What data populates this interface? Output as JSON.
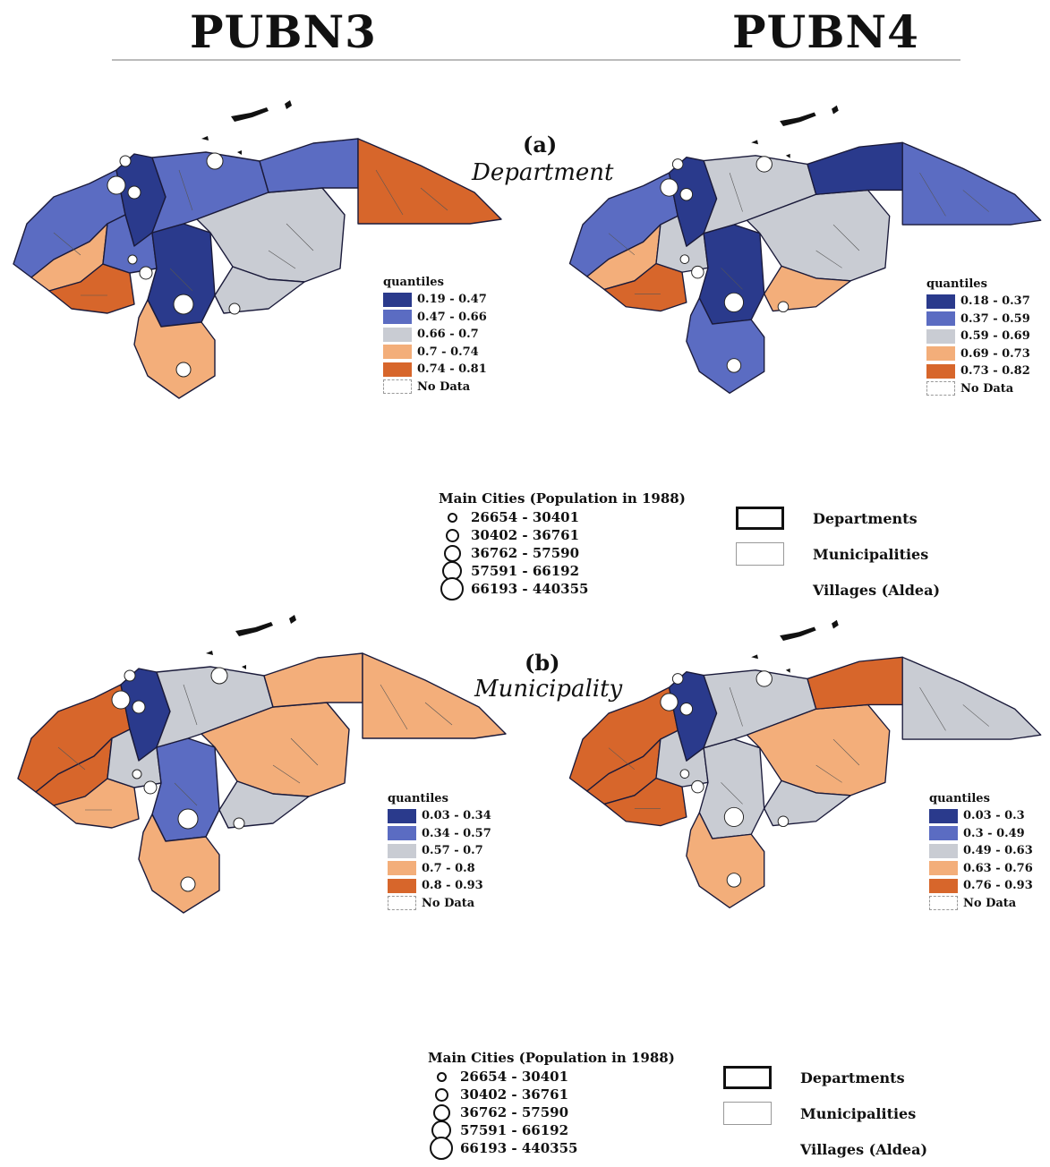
{
  "columns": [
    "PUBN3",
    "PUBN4"
  ],
  "panels": [
    {
      "letter": "(a)",
      "name": "Department"
    },
    {
      "letter": "(b)",
      "name": "Municipality"
    }
  ],
  "colors": {
    "c1": "#2a3a8c",
    "c2": "#5b6cc2",
    "c3": "#c9ccd3",
    "c4": "#f3ae7a",
    "c5": "#d7662b",
    "nodata": "#ffffff"
  },
  "legends": {
    "a_left": {
      "title": "quantiles",
      "items": [
        "0.19 - 0.47",
        "0.47 - 0.66",
        "0.66 - 0.7",
        "0.7 - 0.74",
        "0.74 - 0.81"
      ],
      "nodata": "No Data"
    },
    "a_right": {
      "title": "quantiles",
      "items": [
        "0.18 - 0.37",
        "0.37 - 0.59",
        "0.59 - 0.69",
        "0.69 - 0.73",
        "0.73 - 0.82"
      ],
      "nodata": "No Data"
    },
    "b_left": {
      "title": "quantiles",
      "items": [
        "0.03 - 0.34",
        "0.34 - 0.57",
        "0.57 - 0.7",
        "0.7 - 0.8",
        "0.8 - 0.93"
      ],
      "nodata": "No Data"
    },
    "b_right": {
      "title": "quantiles",
      "items": [
        "0.03 - 0.3",
        "0.3 - 0.49",
        "0.49 - 0.63",
        "0.63 - 0.76",
        "0.76 - 0.93"
      ],
      "nodata": "No Data"
    }
  },
  "cities_legends": [
    {
      "title": "Main Cities (Population in 1988)",
      "items": [
        "26654 - 30401",
        "30402 - 36761",
        "36762 - 57590",
        "57591 - 66192",
        "66193 - 440355"
      ]
    },
    {
      "title": "Main Cities (Population in 1988)",
      "items": [
        "26654 - 30401",
        "30402 - 36761",
        "36762 - 57590",
        "57591 - 66192",
        "66193 - 440355"
      ]
    }
  ],
  "boundaries": [
    "Departments",
    "Municipalities",
    "Villages (Aldea)"
  ],
  "maps": {
    "a_left": {
      "regions": [
        "c2",
        "c1",
        "c4",
        "c5",
        "c2",
        "c1",
        "c2",
        "c3",
        "c3",
        "c4",
        "c2",
        "c5"
      ]
    },
    "a_right": {
      "regions": [
        "c2",
        "c1",
        "c4",
        "c5",
        "c3",
        "c1",
        "c3",
        "c3",
        "c4",
        "c2",
        "c1",
        "c2"
      ]
    },
    "b_left": {
      "regions": [
        "c5",
        "c1",
        "c5",
        "c4",
        "c3",
        "c2",
        "c3",
        "c4",
        "c3",
        "c4",
        "c4",
        "c4"
      ]
    },
    "b_right": {
      "regions": [
        "c5",
        "c1",
        "c5",
        "c5",
        "c3",
        "c3",
        "c3",
        "c4",
        "c3",
        "c4",
        "c5",
        "c3"
      ]
    }
  }
}
